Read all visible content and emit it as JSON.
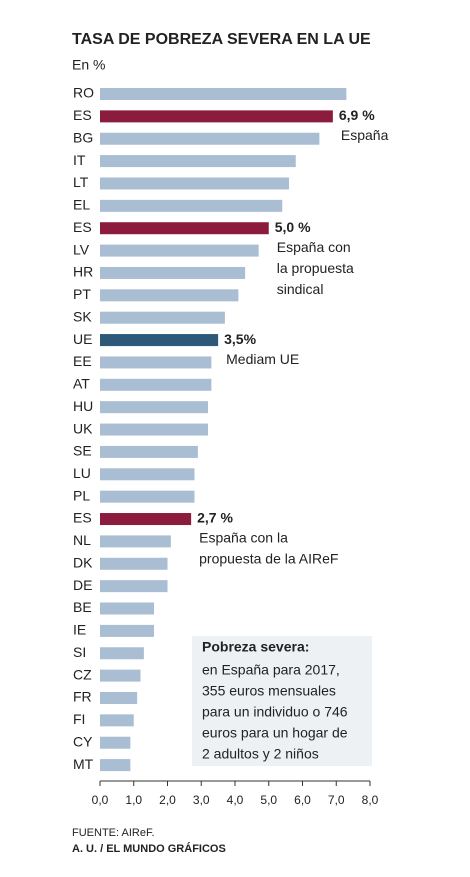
{
  "chart_data": {
    "type": "bar",
    "orientation": "horizontal",
    "title": "TASA DE POBREZA SEVERA EN LA UE",
    "subtitle": "En %",
    "categories": [
      "RO",
      "ES",
      "BG",
      "IT",
      "LT",
      "EL",
      "ES",
      "LV",
      "HR",
      "PT",
      "SK",
      "UE",
      "EE",
      "AT",
      "HU",
      "UK",
      "SE",
      "LU",
      "PL",
      "ES",
      "NL",
      "DK",
      "DE",
      "BE",
      "IE",
      "SI",
      "CZ",
      "FR",
      "FI",
      "CY",
      "MT"
    ],
    "values": [
      7.3,
      6.9,
      6.5,
      5.8,
      5.6,
      5.4,
      5.0,
      4.7,
      4.3,
      4.1,
      3.7,
      3.5,
      3.3,
      3.3,
      3.2,
      3.2,
      2.9,
      2.8,
      2.8,
      2.7,
      2.1,
      2.0,
      2.0,
      1.6,
      1.6,
      1.3,
      1.2,
      1.1,
      1.0,
      0.9,
      0.9
    ],
    "colors": [
      "#a9bdd3",
      "#8c1c3e",
      "#a9bdd3",
      "#a9bdd3",
      "#a9bdd3",
      "#a9bdd3",
      "#8c1c3e",
      "#a9bdd3",
      "#a9bdd3",
      "#a9bdd3",
      "#a9bdd3",
      "#2d5878",
      "#a9bdd3",
      "#a9bdd3",
      "#a9bdd3",
      "#a9bdd3",
      "#a9bdd3",
      "#a9bdd3",
      "#a9bdd3",
      "#8c1c3e",
      "#a9bdd3",
      "#a9bdd3",
      "#a9bdd3",
      "#a9bdd3",
      "#a9bdd3",
      "#a9bdd3",
      "#a9bdd3",
      "#a9bdd3",
      "#a9bdd3",
      "#a9bdd3",
      "#a9bdd3"
    ],
    "value_labels": [
      null,
      "6,9 %",
      null,
      null,
      null,
      null,
      "5,0 %",
      null,
      null,
      null,
      null,
      "3,5%",
      null,
      null,
      null,
      null,
      null,
      null,
      null,
      "2,7 %",
      null,
      null,
      null,
      null,
      null,
      null,
      null,
      null,
      null,
      null,
      null
    ],
    "notes": [
      null,
      [
        "España"
      ],
      null,
      null,
      null,
      null,
      [
        "España con",
        "la propuesta",
        "sindical"
      ],
      null,
      null,
      null,
      null,
      [
        "Mediam UE"
      ],
      null,
      null,
      null,
      null,
      null,
      null,
      null,
      [
        "España con la",
        "propuesta de la AIReF"
      ],
      null,
      null,
      null,
      null,
      null,
      null,
      null,
      null,
      null,
      null,
      null
    ],
    "xlim": [
      0,
      8
    ],
    "xticks": [
      {
        "value": 0,
        "label": "0,0"
      },
      {
        "value": 1,
        "label": "1,0"
      },
      {
        "value": 2,
        "label": "2,0"
      },
      {
        "value": 3,
        "label": "3,0"
      },
      {
        "value": 4,
        "label": "4,0"
      },
      {
        "value": 5,
        "label": "5,0"
      },
      {
        "value": 6,
        "label": "6,0"
      },
      {
        "value": 7,
        "label": "7,0"
      },
      {
        "value": 8,
        "label": "8,0"
      }
    ],
    "box": {
      "title": "Pobreza severa:",
      "lines": [
        "en España para 2017,",
        "355 euros mensuales",
        "para un individuo o 746",
        "euros para un hogar de",
        "2 adultos y 2 niños"
      ]
    },
    "source": "FUENTE: AIReF.",
    "credit": "A. U. / EL MUNDO GRÁFICOS"
  }
}
